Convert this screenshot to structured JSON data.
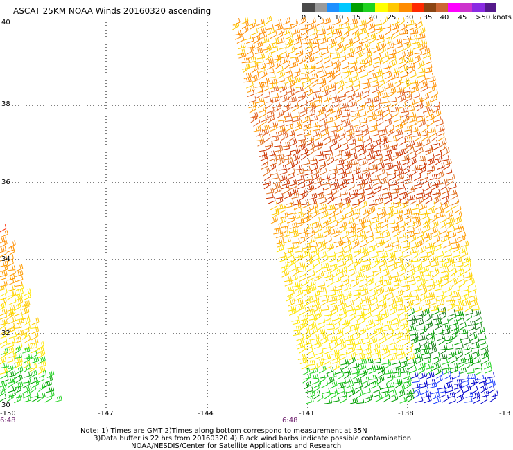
{
  "title": "ASCAT 25KM NOAA Winds 20160320 ascending",
  "colorbar": {
    "colors": [
      "#4a4a4a",
      "#9a9a9a",
      "#1e90ff",
      "#00c8ff",
      "#00a000",
      "#1fd21f",
      "#ffff00",
      "#ffc800",
      "#ff8c00",
      "#ff2a00",
      "#8b4513",
      "#cc6633",
      "#ff00ff",
      "#cc33cc",
      "#8a2be2",
      "#551a8b"
    ],
    "labels": [
      "0",
      "5",
      "10",
      "15",
      "20",
      "25",
      "30",
      "35",
      "40",
      "45",
      ">50 knots"
    ]
  },
  "axes": {
    "lon_ticks": [
      "-150",
      "-147",
      "-144",
      "-141",
      "-138",
      "-13"
    ],
    "lat_ticks": [
      "40",
      "38",
      "36",
      "34",
      "32",
      "30"
    ]
  },
  "times": [
    "6:48",
    "6:48"
  ],
  "notes": [
    "Note: 1) Times are GMT 2)Times along bottom correspond to measurement at 35N",
    "      3)Data buffer is 22 hrs from 20160320 4) Black wind barbs indicate possible contamination",
    "                       NOAA/NESDIS/Center for Satellite Applications and Research"
  ],
  "swaths": [
    {
      "name": "west-swath",
      "dominant_colors": [
        "#ff2a00",
        "#ff8c00",
        "#ffc800",
        "#ffff00",
        "#1fd21f",
        "#00a000"
      ]
    },
    {
      "name": "east-swath",
      "dominant_colors": [
        "#cc3300",
        "#ff8c00",
        "#ffc800",
        "#ffff00",
        "#1fd21f",
        "#00a000",
        "#0000cc"
      ]
    }
  ]
}
